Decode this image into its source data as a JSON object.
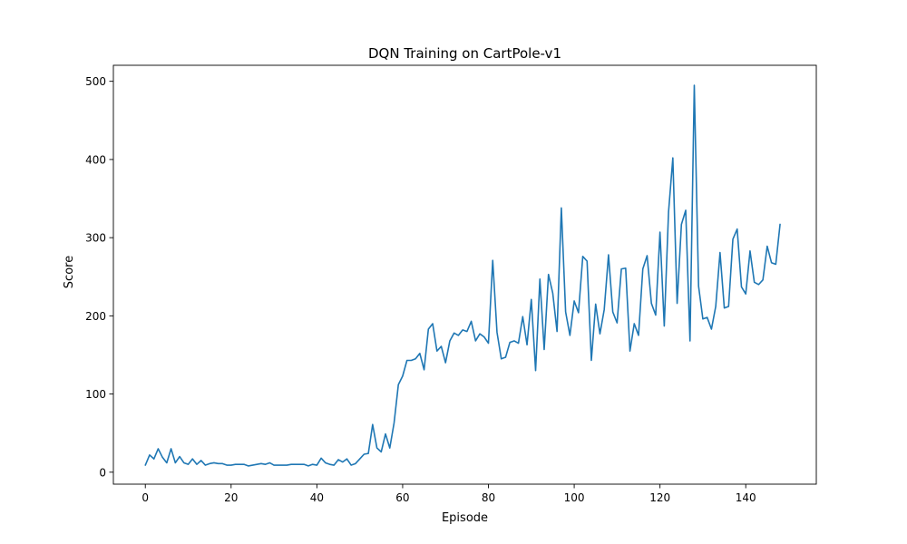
{
  "chart_data": {
    "type": "line",
    "title": "DQN Training on CartPole-v1",
    "xlabel": "Episode",
    "ylabel": "Score",
    "xlim": [
      -7.45,
      156.45
    ],
    "ylim": [
      -15.3,
      520.5
    ],
    "xticks": [
      0,
      20,
      40,
      60,
      80,
      100,
      120,
      140
    ],
    "yticks": [
      0,
      100,
      200,
      300,
      400,
      500
    ],
    "grid": false,
    "legend": null,
    "line_color": "#1f77b4",
    "series": [
      {
        "values": [
          9,
          22,
          17,
          30,
          19,
          12,
          30,
          12,
          20,
          12,
          10,
          17,
          10,
          15,
          9,
          11,
          12,
          11,
          11,
          9,
          9,
          10,
          10,
          10,
          8,
          9,
          10,
          11,
          10,
          12,
          9,
          9,
          9,
          9,
          10,
          10,
          10,
          10,
          8,
          10,
          9,
          18,
          12,
          10,
          9,
          16,
          13,
          17,
          9,
          11,
          17,
          23,
          24,
          61,
          31,
          26,
          49,
          31,
          63,
          112,
          123,
          143,
          143,
          145,
          152,
          131,
          183,
          190,
          155,
          161,
          140,
          168,
          178,
          175,
          182,
          180,
          193,
          168,
          177,
          173,
          165,
          271,
          179,
          145,
          147,
          166,
          168,
          165,
          199,
          163,
          221,
          130,
          247,
          157,
          253,
          229,
          180,
          338,
          205,
          175,
          219,
          204,
          276,
          270,
          143,
          215,
          177,
          208,
          278,
          205,
          191,
          260,
          261,
          155,
          190,
          175,
          260,
          277,
          216,
          201,
          307,
          187,
          333,
          402,
          216,
          317,
          335,
          168,
          495,
          238,
          196,
          198,
          183,
          212,
          281,
          210,
          212,
          298,
          311,
          237,
          228,
          283,
          243,
          240,
          246,
          289,
          268,
          266,
          317
        ]
      }
    ]
  }
}
